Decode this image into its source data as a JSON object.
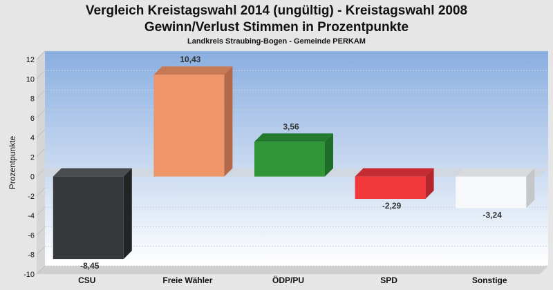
{
  "chart_data": {
    "type": "bar",
    "title_line1": "Vergleich Kreistagswahl 2014 (ungültig) - Kreistagswahl 2008",
    "title_line2": "Gewinn/Verlust Stimmen in Prozentpunkte",
    "subtitle": "Landkreis Straubing-Bogen - Gemeinde PERKAM",
    "ylabel": "Prozentpunkte",
    "xlabel": "",
    "ylim": [
      -10,
      12
    ],
    "yticks": [
      "12",
      "10",
      "8",
      "6",
      "4",
      "2",
      "0",
      "-2",
      "-4",
      "-6",
      "-8",
      "-10"
    ],
    "categories": [
      "CSU",
      "Freie Wähler",
      "ÖDP/PU",
      "SPD",
      "Sonstige"
    ],
    "values": [
      -8.45,
      10.43,
      3.56,
      -2.29,
      -3.24
    ],
    "value_labels": [
      "-8,45",
      "10,43",
      "3,56",
      "-2,29",
      "-3,24"
    ],
    "colors": [
      "#36383c",
      "#ef956a",
      "#2f9537",
      "#f1393c",
      "#f7f8fa"
    ],
    "side_colors": [
      "#222426",
      "#b4684a",
      "#1f6e27",
      "#b3262b",
      "#c5c6c8"
    ],
    "top_colors": [
      "#4a4c50",
      "#c77955",
      "#247a2d",
      "#c52c31",
      "#d9dadc"
    ],
    "grid": true
  }
}
